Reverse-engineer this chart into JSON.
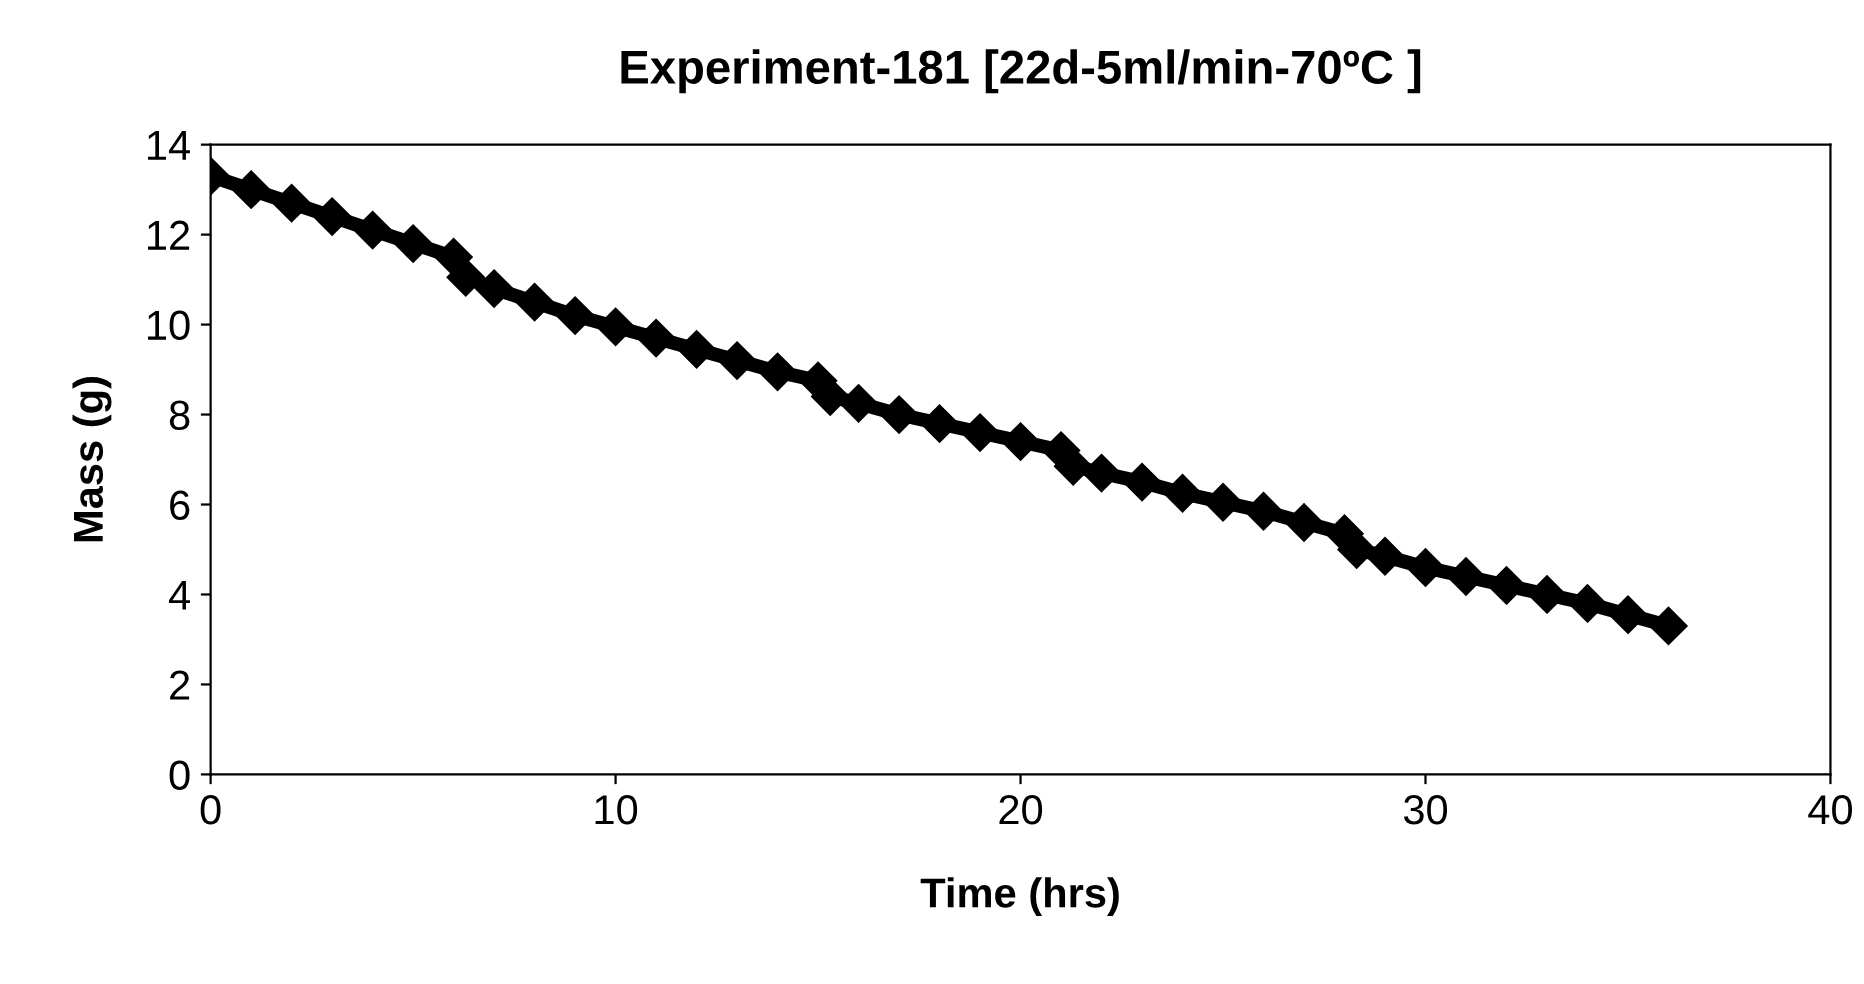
{
  "chart_data": {
    "type": "line",
    "title": "Experiment-181 [22d-5ml/min-70ºC ]",
    "xlabel": "Time (hrs)",
    "ylabel": "Mass (g)",
    "series": [
      {
        "color": "#000000",
        "marker": "diamond",
        "x": [
          0,
          1,
          2,
          3,
          4,
          5,
          6,
          6.3,
          7,
          8,
          9,
          10,
          11,
          12,
          13,
          14,
          15,
          15.3,
          16,
          17,
          18,
          19,
          20,
          21,
          21.3,
          22,
          23,
          24,
          25,
          26,
          27,
          28,
          28.3,
          29,
          30,
          31,
          32,
          33,
          34,
          35,
          36
        ],
        "values": [
          13.3,
          13.0,
          12.7,
          12.4,
          12.1,
          11.8,
          11.5,
          11.05,
          10.8,
          10.5,
          10.2,
          9.95,
          9.7,
          9.45,
          9.2,
          8.95,
          8.75,
          8.4,
          8.25,
          8.0,
          7.8,
          7.6,
          7.4,
          7.2,
          6.85,
          6.7,
          6.5,
          6.25,
          6.05,
          5.85,
          5.6,
          5.35,
          5.0,
          4.85,
          4.6,
          4.4,
          4.2,
          4.0,
          3.8,
          3.55,
          3.3
        ]
      }
    ],
    "xlim": [
      0,
      40
    ],
    "xticks": [
      0,
      10,
      20,
      30,
      40
    ],
    "ylim": [
      0,
      14
    ],
    "yticks": [
      0,
      2,
      4,
      6,
      8,
      10,
      12,
      14
    ],
    "grid": false,
    "legend": false
  }
}
